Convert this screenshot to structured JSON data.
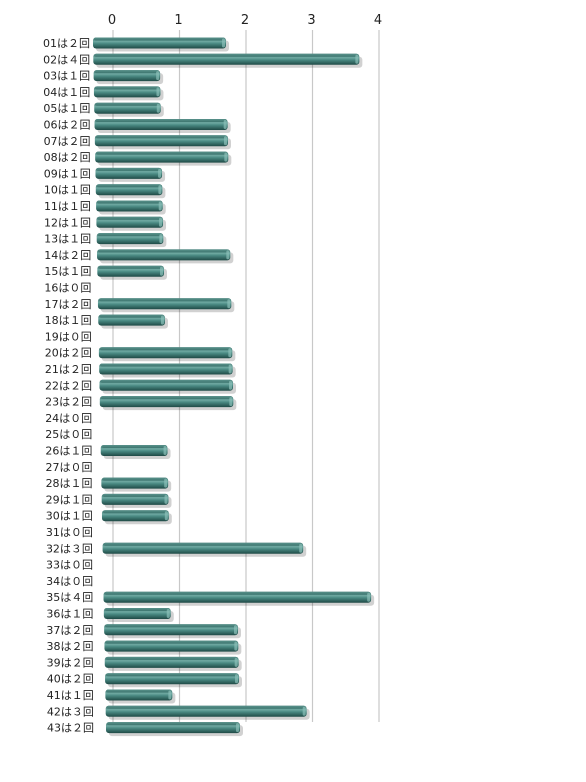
{
  "chart_data": {
    "type": "bar",
    "orientation": "horizontal",
    "style": "3d",
    "bar_color": "#3f7f78",
    "grid": true,
    "xlim": [
      0,
      4
    ],
    "ticks": [
      "0",
      "1",
      "2",
      "3",
      "4"
    ],
    "categories": [
      "01は２回",
      "02は４回",
      "03は１回",
      "04は１回",
      "05は１回",
      "06は２回",
      "07は２回",
      "08は２回",
      "09は１回",
      "10は１回",
      "11は１回",
      "12は１回",
      "13は１回",
      "14は２回",
      "15は１回",
      "16は０回",
      "17は２回",
      "18は１回",
      "19は０回",
      "20は２回",
      "21は２回",
      "22は２回",
      "23は２回",
      "24は０回",
      "25は０回",
      "26は１回",
      "27は０回",
      "28は１回",
      "29は１回",
      "30は１回",
      "31は０回",
      "32は３回",
      "33は０回",
      "34は０回",
      "35は４回",
      "36は１回",
      "37は２回",
      "38は２回",
      "39は２回",
      "40は２回",
      "41は１回",
      "42は３回",
      "43は２回"
    ],
    "values": [
      2,
      4,
      1,
      1,
      1,
      2,
      2,
      2,
      1,
      1,
      1,
      1,
      1,
      2,
      1,
      0,
      2,
      1,
      0,
      2,
      2,
      2,
      2,
      0,
      0,
      1,
      0,
      1,
      1,
      1,
      0,
      3,
      0,
      0,
      4,
      1,
      2,
      2,
      2,
      2,
      1,
      3,
      2
    ]
  }
}
